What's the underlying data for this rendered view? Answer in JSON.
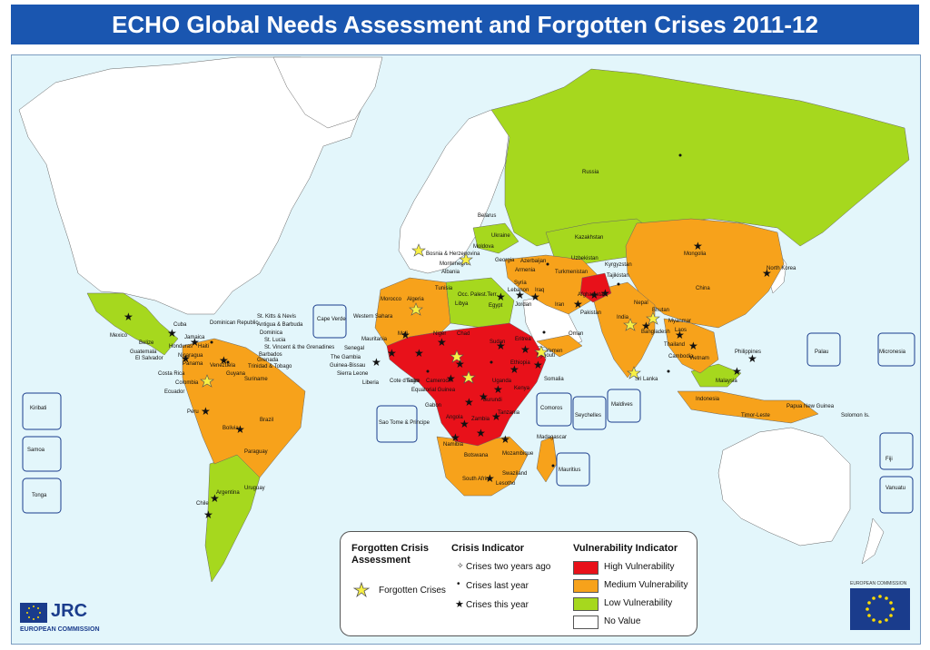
{
  "title": "ECHO Global Needs Assessment and Forgotten Crises 2011-12",
  "colors": {
    "high": "#e8111a",
    "medium": "#f7a21b",
    "low": "#a6d81e",
    "none": "#ffffff",
    "ocean": "#e3f6fb",
    "title_bg": "#1a56b0"
  },
  "legend": {
    "forgotten_heading": "Forgotten Crisis Assessment",
    "forgotten_label": "Forgotten Crises",
    "crisis_heading": "Crisis Indicator",
    "crisis_items": [
      "Crises two years ago",
      "Crises last year",
      "Crises this year"
    ],
    "vuln_heading": "Vulnerability Indicator",
    "vuln_items": [
      "High Vulnerability",
      "Medium Vulnerability",
      "Low Vulnerability",
      "No Value"
    ]
  },
  "logos": {
    "jrc": "JRC",
    "jrc_sub": "EUROPEAN COMMISSION",
    "ec": "EUROPEAN COMMISSION"
  },
  "inset_labels": {
    "kiribati": "Kiribati",
    "samoa": "Samoa",
    "tonga": "Tonga",
    "cape_verde": "Cape Verde",
    "sao_tome": "Sao Tome & Principe",
    "comoros": "Comoros",
    "seychelles": "Seychelles",
    "maldives": "Maldives",
    "mauritius": "Mauritius",
    "palau": "Palau",
    "micronesia": "Micronesia",
    "fiji": "Fiji",
    "vanuatu": "Vanuatu"
  },
  "country_labels": {
    "russia": "Russia",
    "kazakhstan": "Kazakhstan",
    "mongolia": "Mongolia",
    "china": "China",
    "uzbekistan": "Uzbekistan",
    "kyrgyzstan": "Kyrgyzstan",
    "turkmenistan": "Turkmenistan",
    "tajikistan": "Tajikistan",
    "afghanistan": "Afghanistan",
    "iran": "Iran",
    "pakistan": "Pakistan",
    "india": "India",
    "nepal": "Nepal",
    "bhutan": "Bhutan",
    "bangladesh": "Bangladesh",
    "myanmar": "Myanmar",
    "laos": "Laos",
    "thailand": "Thailand",
    "cambodia": "Cambodia",
    "vietnam": "Vietnam",
    "philippines": "Philippines",
    "malaysia": "Malaysia",
    "indonesia": "Indonesia",
    "timor_leste": "Timor-Leste",
    "png": "Papua New Guinea",
    "solomon": "Solomon Is.",
    "nkorea": "North Korea",
    "srilanka": "Sri Lanka",
    "georgia": "Georgia",
    "azerbaijan": "Azerbaijan",
    "armenia": "Armenia",
    "belarus": "Belarus",
    "ukraine": "Ukraine",
    "moldova": "Moldova",
    "bih": "Bosnia & Herzegovina",
    "montenegro": "Montenegro",
    "albania": "Albania",
    "tunisia": "Tunisia",
    "algeria": "Algeria",
    "morocco": "Morocco",
    "western_sahara": "Western Sahara",
    "mauritania": "Mauritania",
    "libya": "Libya",
    "egypt": "Egypt",
    "lebanon": "Lebanon",
    "syria": "Syria",
    "iraq": "Iraq",
    "jordan": "Jordan",
    "opt": "Occ. Palest.Terr.",
    "yemen": "Yemen",
    "oman": "Oman",
    "sudan": "Sudan",
    "eritrea": "Eritrea",
    "djibouti": "Djibouti",
    "ethiopia": "Ethiopia",
    "somalia": "Somalia",
    "kenya": "Kenya",
    "uganda": "Uganda",
    "tanzania": "Tanzania",
    "burundi": "Burundi",
    "mali": "Mali",
    "niger": "Niger",
    "chad": "Chad",
    "senegal": "Senegal",
    "gambia": "The Gambia",
    "guinea_bissau": "Guinea-Bissau",
    "sierra_leone": "Sierra Leone",
    "liberia": "Liberia",
    "cote": "Cote d'Ivoire",
    "togo": "Togo",
    "eq_guinea": "Equatorial Guinea",
    "gabon": "Gabon",
    "cameroon": "Cameroon",
    "angola": "Angola",
    "zambia": "Zambia",
    "namibia": "Namibia",
    "botswana": "Botswana",
    "mozambique": "Mozambique",
    "madagascar": "Madagascar",
    "south_africa": "South Africa",
    "swaziland": "Swaziland",
    "lesotho": "Lesotho",
    "mexico": "Mexico",
    "cuba": "Cuba",
    "dominican": "Dominican Republic",
    "haiti": "Haiti",
    "jamaica": "Jamaica",
    "belize": "Belize",
    "guatemala": "Guatemala",
    "honduras": "Honduras",
    "el_salvador": "El Salvador",
    "nicaragua": "Nicaragua",
    "costa_rica": "Costa Rica",
    "panama": "Panama",
    "colombia": "Colombia",
    "venezuela": "Venezuela",
    "guyana": "Guyana",
    "suriname": "Suriname",
    "ecuador": "Ecuador",
    "peru": "Peru",
    "brazil": "Brazil",
    "bolivia": "Bolivia",
    "paraguay": "Paraguay",
    "uruguay": "Uruguay",
    "argentina": "Argentina",
    "chile": "Chile",
    "caribbean": [
      "St. Kitts & Nevis",
      "Antigua & Barbuda",
      "Dominica",
      "St. Lucia",
      "St. Vincent & the Grenadines",
      "Barbados",
      "Grenada",
      "Trinidad & Tobago"
    ]
  }
}
